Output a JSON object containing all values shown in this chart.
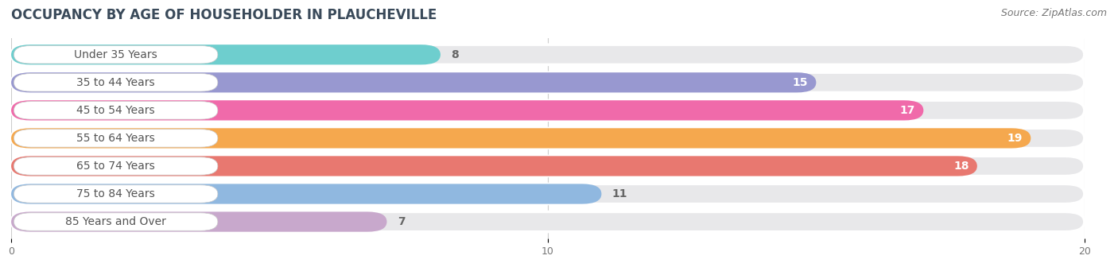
{
  "title": "OCCUPANCY BY AGE OF HOUSEHOLDER IN PLAUCHEVILLE",
  "source": "Source: ZipAtlas.com",
  "categories": [
    "Under 35 Years",
    "35 to 44 Years",
    "45 to 54 Years",
    "55 to 64 Years",
    "65 to 74 Years",
    "75 to 84 Years",
    "85 Years and Over"
  ],
  "values": [
    8,
    15,
    17,
    19,
    18,
    11,
    7
  ],
  "bar_colors": [
    "#6ecece",
    "#9898d0",
    "#f06aaa",
    "#f5a84e",
    "#e87870",
    "#90b8e0",
    "#c8a8cc"
  ],
  "bar_bg_color": "#e8e8ea",
  "xlim": [
    0,
    20
  ],
  "xticks": [
    0,
    10,
    20
  ],
  "title_fontsize": 12,
  "source_fontsize": 9,
  "label_fontsize": 10,
  "value_fontsize": 10,
  "background_color": "#ffffff",
  "label_pill_color": "#ffffff",
  "label_text_color": "#555555",
  "value_color_inside": "#ffffff",
  "value_color_outside": "#666666",
  "value_threshold": 13
}
